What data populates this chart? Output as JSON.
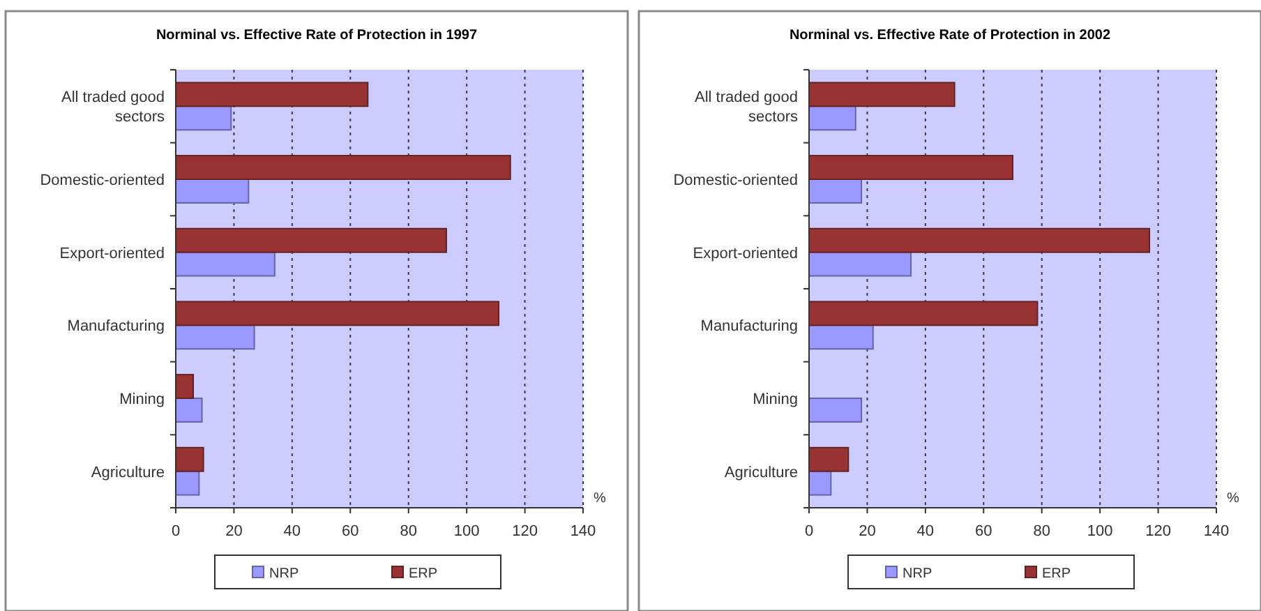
{
  "chart_data": [
    {
      "type": "bar",
      "orientation": "horizontal",
      "title": "Norminal vs. Effective Rate of Protection in 1997",
      "xlabel": "%",
      "categories": [
        "All traded good sectors",
        "Domestic-oriented",
        "Export-oriented",
        "Manufacturing",
        "Mining",
        "Agriculture"
      ],
      "series": [
        {
          "name": "NRP",
          "color": "#9999ff",
          "values": [
            19,
            25,
            34,
            27,
            9,
            8
          ]
        },
        {
          "name": "ERP",
          "color": "#993333",
          "values": [
            66,
            115,
            93,
            111,
            6,
            9.5
          ]
        }
      ],
      "xlim": [
        0,
        140
      ],
      "xticks": [
        0,
        20,
        40,
        60,
        80,
        100,
        120,
        140
      ],
      "grid": "x",
      "legend": "bottom"
    },
    {
      "type": "bar",
      "orientation": "horizontal",
      "title": "Norminal vs. Effective Rate of Protection in 2002",
      "xlabel": "%",
      "categories": [
        "All traded good sectors",
        "Domestic-oriented",
        "Export-oriented",
        "Manufacturing",
        "Mining",
        "Agriculture"
      ],
      "series": [
        {
          "name": "NRP",
          "color": "#9999ff",
          "values": [
            16,
            18,
            35,
            22,
            18,
            7.5
          ]
        },
        {
          "name": "ERP",
          "color": "#993333",
          "values": [
            50,
            70,
            117,
            78.5,
            0,
            13.5
          ]
        }
      ],
      "xlim": [
        0,
        140
      ],
      "xticks": [
        0,
        20,
        40,
        60,
        80,
        100,
        120,
        140
      ],
      "grid": "x",
      "legend": "bottom"
    }
  ]
}
